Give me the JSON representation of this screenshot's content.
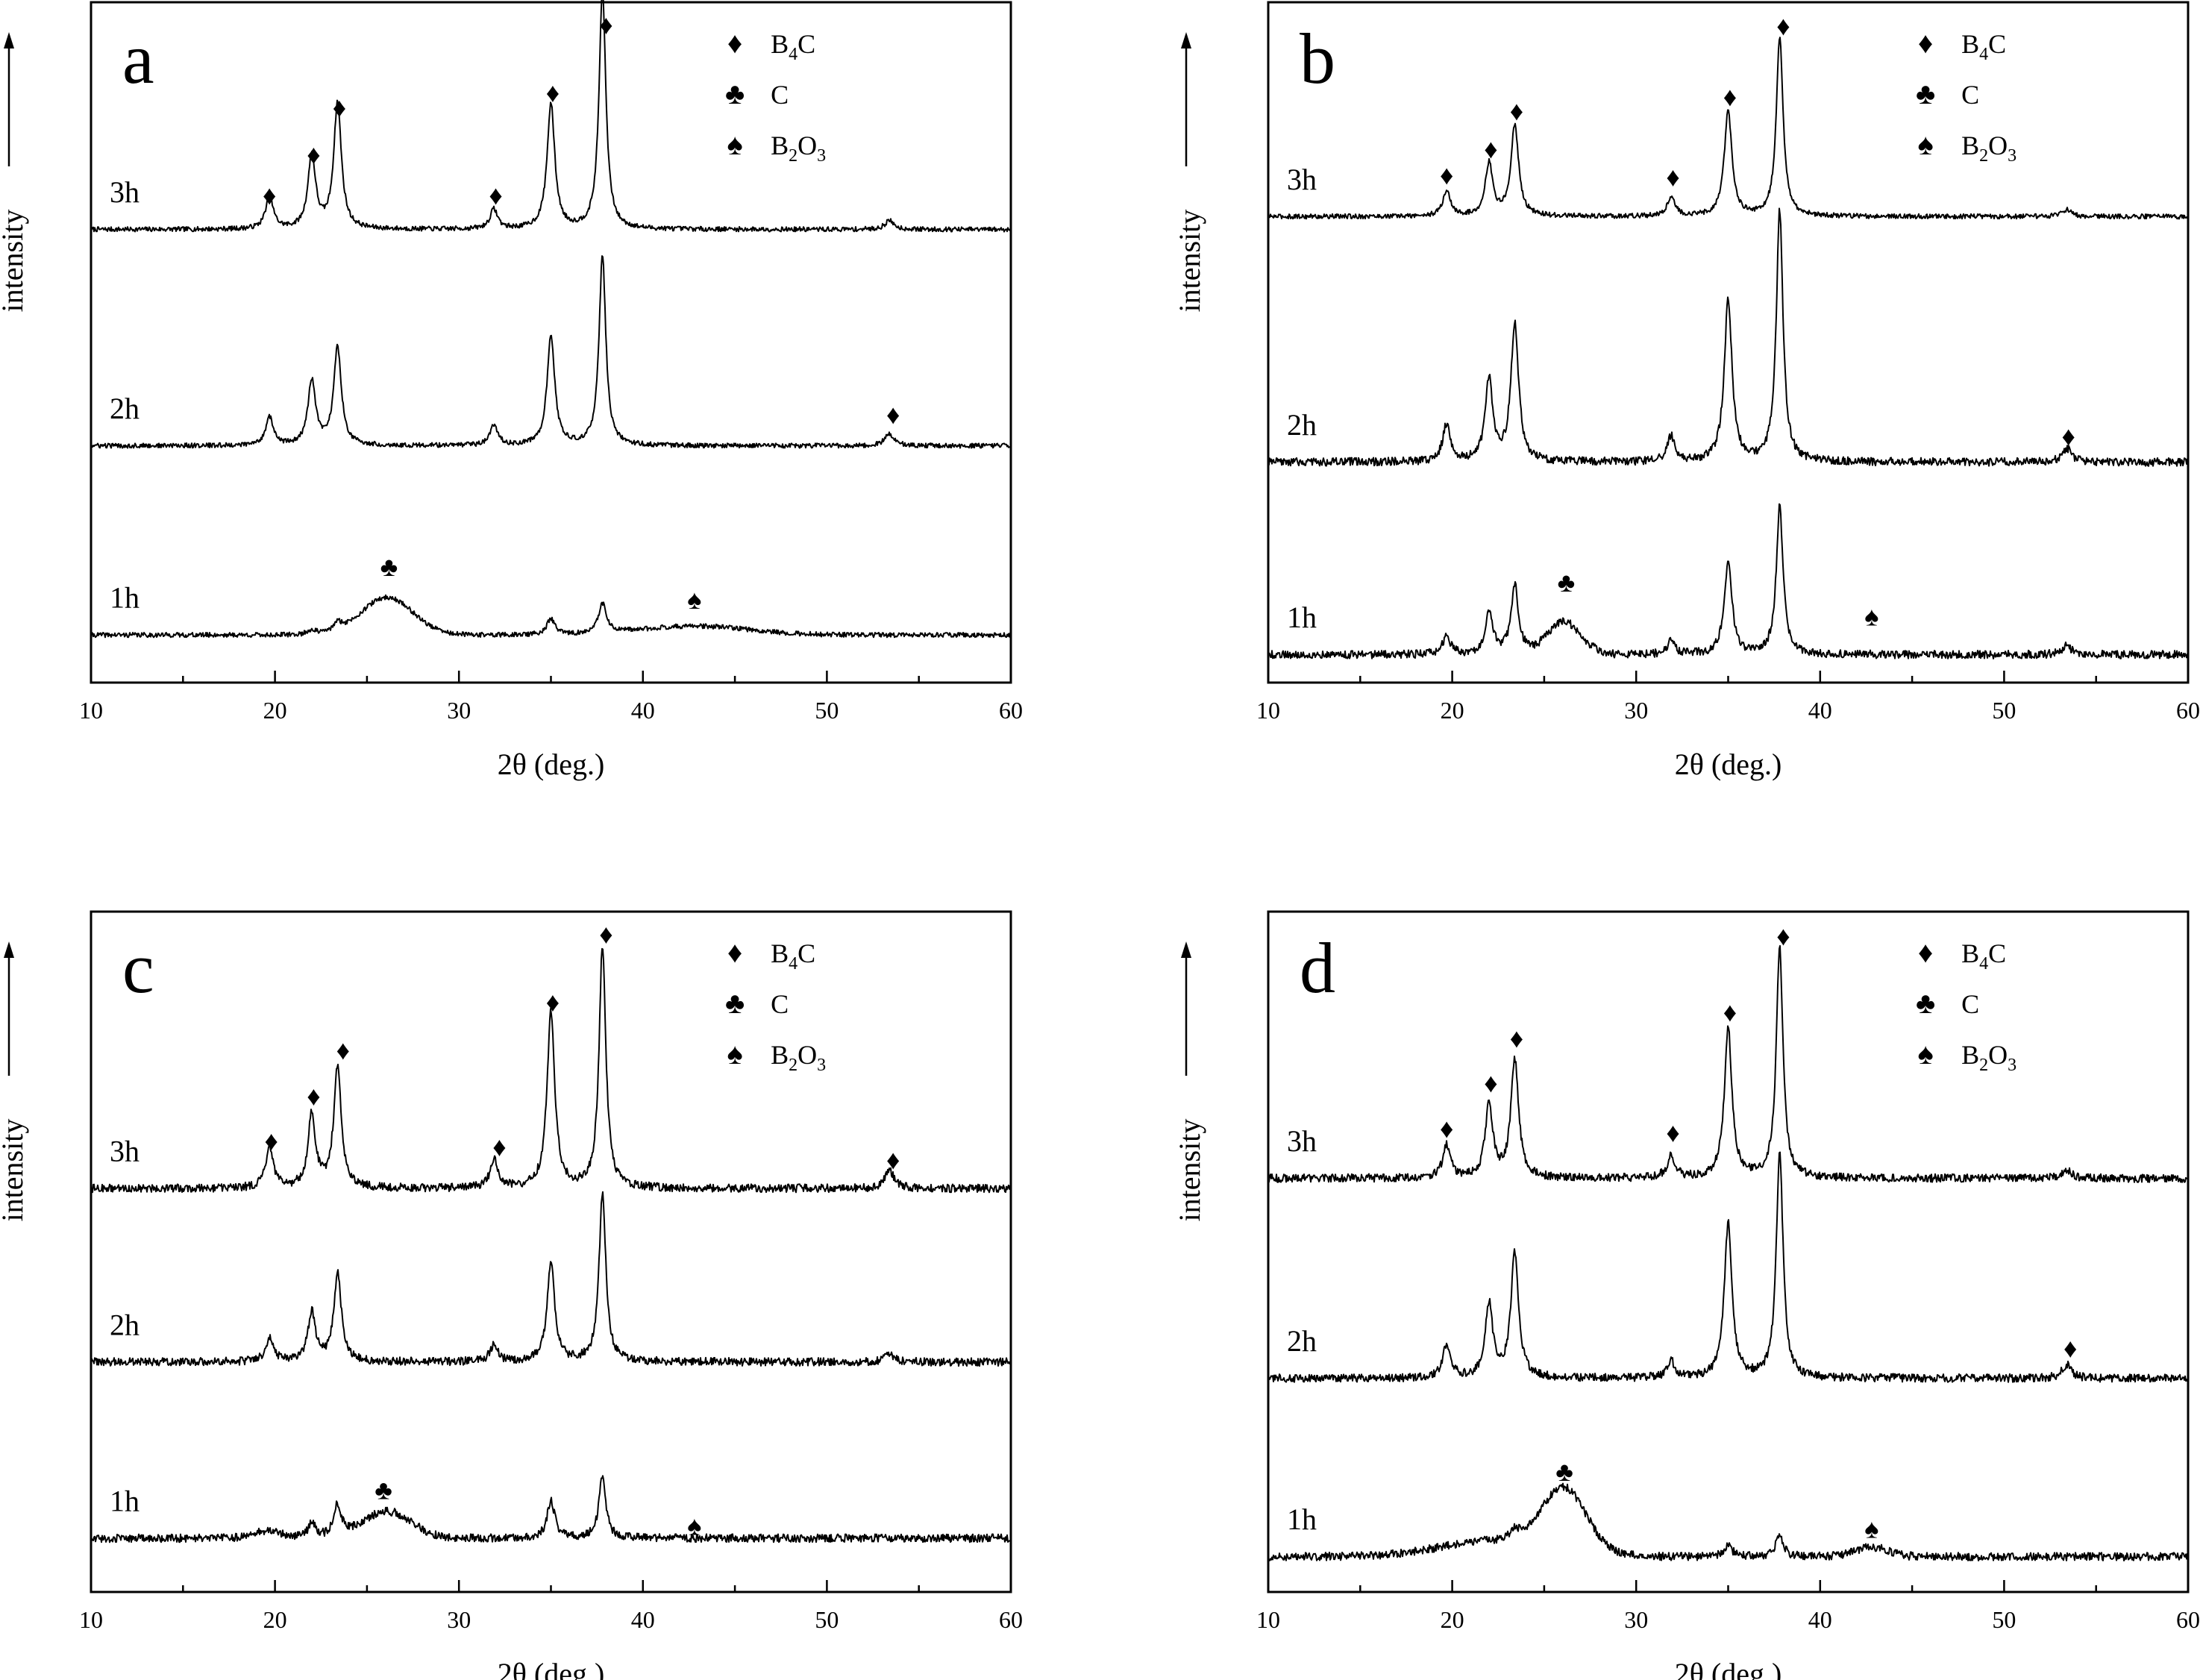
{
  "figure": {
    "panels": [
      "a",
      "b",
      "c",
      "d"
    ]
  },
  "chart_data": [
    {
      "type": "line",
      "panel_label": "a",
      "xlabel": "2θ (deg.)",
      "ylabel": "intensity",
      "xlim": [
        10,
        60
      ],
      "ylim": [
        0,
        100
      ],
      "xticks": [
        10,
        20,
        30,
        40,
        50,
        60
      ],
      "legend": {
        "placement": "top-right",
        "entries": [
          {
            "symbol": "♦",
            "main": "B",
            "sub": "4",
            "tail": "C"
          },
          {
            "symbol": "♣",
            "main": "C",
            "sub": "",
            "tail": ""
          },
          {
            "symbol": "♠",
            "main": "B",
            "sub": "2",
            "tail": "O",
            "sub2": "3"
          }
        ]
      },
      "series": [
        {
          "name": "3h",
          "label": "3h",
          "baseline": 66.6,
          "bump": [],
          "peaks": [
            [
              19.7,
              4.8,
              0.25
            ],
            [
              22.0,
              10.8,
              0.25
            ],
            [
              23.4,
              18.5,
              0.25
            ],
            [
              31.9,
              2.9,
              0.25
            ],
            [
              35.0,
              18.4,
              0.25
            ],
            [
              37.8,
              35.3,
              0.22
            ],
            [
              53.4,
              1.3,
              0.3
            ]
          ],
          "markers": [
            {
              "symbol": "♦",
              "x": 19.7,
              "y": 71.8
            },
            {
              "symbol": "♦",
              "x": 22.1,
              "y": 77.8
            },
            {
              "symbol": "♦",
              "x": 23.5,
              "y": 84.7
            },
            {
              "symbol": "♦",
              "x": 32.0,
              "y": 71.8
            },
            {
              "symbol": "♦",
              "x": 35.1,
              "y": 86.9
            },
            {
              "symbol": "♦",
              "x": 38.0,
              "y": 96.9
            }
          ]
        },
        {
          "name": "2h",
          "label": "2h",
          "baseline": 34.8,
          "bump": [],
          "peaks": [
            [
              19.7,
              4.2,
              0.25
            ],
            [
              22.0,
              9.5,
              0.25
            ],
            [
              23.4,
              14.4,
              0.25
            ],
            [
              31.9,
              3.0,
              0.25
            ],
            [
              35.0,
              16.0,
              0.25
            ],
            [
              37.8,
              27.9,
              0.22
            ],
            [
              53.4,
              1.8,
              0.3
            ]
          ],
          "markers": [
            {
              "symbol": "♦",
              "x": 53.6,
              "y": 39.6
            }
          ]
        },
        {
          "name": "1h",
          "label": "1h",
          "baseline": 7.0,
          "bump": [
            [
              26.1,
              5.5,
              1.4
            ],
            [
              42.8,
              1.3,
              3
            ]
          ],
          "peaks": [
            [
              35.0,
              2.4,
              0.25
            ],
            [
              37.8,
              4.4,
              0.25
            ],
            [
              22.0,
              0.7,
              0.3
            ],
            [
              23.4,
              1.2,
              0.3
            ]
          ],
          "markers": [
            {
              "symbol": "♣",
              "x": 26.2,
              "y": 17.2
            },
            {
              "symbol": "♠",
              "x": 42.8,
              "y": 12.4
            }
          ]
        }
      ]
    },
    {
      "type": "line",
      "panel_label": "b",
      "xlabel": "2θ (deg.)",
      "ylabel": "intensity",
      "xlim": [
        10,
        60
      ],
      "ylim": [
        0,
        100
      ],
      "xticks": [
        10,
        20,
        30,
        40,
        50,
        60
      ],
      "legend": {
        "placement": "top-right",
        "entries": [
          {
            "symbol": "♦",
            "main": "B",
            "sub": "4",
            "tail": "C"
          },
          {
            "symbol": "♣",
            "main": "C",
            "sub": "",
            "tail": ""
          },
          {
            "symbol": "♠",
            "main": "B",
            "sub": "2",
            "tail": "O",
            "sub2": "3"
          }
        ]
      },
      "series": [
        {
          "name": "3h",
          "label": "3h",
          "baseline": 68.5,
          "bump": [],
          "peaks": [
            [
              19.7,
              3.7,
              0.25
            ],
            [
              22.0,
              7.7,
              0.25
            ],
            [
              23.4,
              13.4,
              0.25
            ],
            [
              31.9,
              2.9,
              0.25
            ],
            [
              35.0,
              15.4,
              0.25
            ],
            [
              37.8,
              26.4,
              0.22
            ],
            [
              53.4,
              1.0,
              0.3
            ]
          ],
          "markers": [
            {
              "symbol": "♦",
              "x": 19.7,
              "y": 74.8
            },
            {
              "symbol": "♦",
              "x": 22.1,
              "y": 78.6
            },
            {
              "symbol": "♦",
              "x": 23.5,
              "y": 84.2
            },
            {
              "symbol": "♦",
              "x": 32.0,
              "y": 74.5
            },
            {
              "symbol": "♦",
              "x": 35.1,
              "y": 86.3
            },
            {
              "symbol": "♦",
              "x": 38.0,
              "y": 96.7
            }
          ]
        },
        {
          "name": "2h",
          "label": "2h",
          "baseline": 32.4,
          "bump": [],
          "peaks": [
            [
              19.7,
              5.6,
              0.25
            ],
            [
              22.0,
              12.0,
              0.25
            ],
            [
              23.4,
              20.3,
              0.25
            ],
            [
              31.9,
              3.7,
              0.25
            ],
            [
              35.0,
              24.0,
              0.25
            ],
            [
              37.8,
              36.9,
              0.22
            ],
            [
              53.4,
              2.1,
              0.3
            ]
          ],
          "markers": [
            {
              "symbol": "♦",
              "x": 53.5,
              "y": 36.4
            }
          ]
        },
        {
          "name": "1h",
          "label": "1h",
          "baseline": 4.1,
          "bump": [
            [
              26.1,
              4.7,
              0.9
            ]
          ],
          "peaks": [
            [
              19.7,
              2.7,
              0.25
            ],
            [
              22.0,
              6.5,
              0.25
            ],
            [
              23.4,
              10.1,
              0.25
            ],
            [
              31.9,
              2.0,
              0.25
            ],
            [
              35.0,
              13.7,
              0.25
            ],
            [
              37.8,
              21.8,
              0.22
            ],
            [
              53.4,
              1.3,
              0.3
            ]
          ],
          "markers": [
            {
              "symbol": "♣",
              "x": 26.2,
              "y": 14.9
            },
            {
              "symbol": "♠",
              "x": 42.8,
              "y": 9.9
            }
          ]
        }
      ]
    },
    {
      "type": "line",
      "panel_label": "c",
      "xlabel": "2θ (deg.)",
      "ylabel": "intensity",
      "xlim": [
        10,
        60
      ],
      "ylim": [
        0,
        100
      ],
      "xticks": [
        10,
        20,
        30,
        40,
        50,
        60
      ],
      "legend": {
        "placement": "top-right",
        "entries": [
          {
            "symbol": "♦",
            "main": "B",
            "sub": "4",
            "tail": "C"
          },
          {
            "symbol": "♣",
            "main": "C",
            "sub": "",
            "tail": ""
          },
          {
            "symbol": "♠",
            "main": "B",
            "sub": "2",
            "tail": "O",
            "sub2": "3"
          }
        ]
      },
      "series": [
        {
          "name": "3h",
          "label": "3h",
          "baseline": 59.3,
          "bump": [],
          "peaks": [
            [
              19.7,
              5.8,
              0.25
            ],
            [
              22.0,
              10.7,
              0.25
            ],
            [
              23.4,
              17.6,
              0.25
            ],
            [
              31.9,
              4.2,
              0.25
            ],
            [
              35.0,
              26.0,
              0.25
            ],
            [
              37.8,
              35.6,
              0.22
            ],
            [
              53.4,
              2.6,
              0.3
            ]
          ],
          "markers": [
            {
              "symbol": "♦",
              "x": 19.8,
              "y": 66.5
            },
            {
              "symbol": "♦",
              "x": 22.1,
              "y": 73.1
            },
            {
              "symbol": "♦",
              "x": 23.7,
              "y": 79.8
            },
            {
              "symbol": "♦",
              "x": 32.2,
              "y": 65.6
            },
            {
              "symbol": "♦",
              "x": 35.1,
              "y": 86.9
            },
            {
              "symbol": "♦",
              "x": 38.0,
              "y": 96.9
            },
            {
              "symbol": "♦",
              "x": 53.6,
              "y": 63.7
            }
          ]
        },
        {
          "name": "2h",
          "label": "2h",
          "baseline": 33.8,
          "bump": [],
          "peaks": [
            [
              19.7,
              3.5,
              0.25
            ],
            [
              22.0,
              7.2,
              0.25
            ],
            [
              23.4,
              12.9,
              0.25
            ],
            [
              31.9,
              2.5,
              0.25
            ],
            [
              35.0,
              14.5,
              0.25
            ],
            [
              37.8,
              24.7,
              0.22
            ],
            [
              53.4,
              1.1,
              0.3
            ]
          ],
          "markers": []
        },
        {
          "name": "1h",
          "label": "1h",
          "baseline": 7.9,
          "bump": [
            [
              26.1,
              3.9,
              1.3
            ],
            [
              19.6,
              1.0,
              0.8
            ]
          ],
          "peaks": [
            [
              22.0,
              2.2,
              0.25
            ],
            [
              23.4,
              4.7,
              0.25
            ],
            [
              35.0,
              5.5,
              0.25
            ],
            [
              37.8,
              9.3,
              0.22
            ]
          ],
          "markers": [
            {
              "symbol": "♣",
              "x": 25.9,
              "y": 15.2
            },
            {
              "symbol": "♠",
              "x": 42.8,
              "y": 9.9
            }
          ]
        }
      ]
    },
    {
      "type": "line",
      "panel_label": "d",
      "xlabel": "2θ (deg.)",
      "ylabel": "intensity",
      "xlim": [
        10,
        60
      ],
      "ylim": [
        0,
        100
      ],
      "xticks": [
        10,
        20,
        30,
        40,
        50,
        60
      ],
      "legend": {
        "placement": "top-right",
        "entries": [
          {
            "symbol": "♦",
            "main": "B",
            "sub": "4",
            "tail": "C"
          },
          {
            "symbol": "♣",
            "main": "C",
            "sub": "",
            "tail": ""
          },
          {
            "symbol": "♠",
            "main": "B",
            "sub": "2",
            "tail": "O",
            "sub2": "3"
          }
        ]
      },
      "series": [
        {
          "name": "3h",
          "label": "3h",
          "baseline": 60.8,
          "bump": [],
          "peaks": [
            [
              19.7,
              4.8,
              0.25
            ],
            [
              22.0,
              10.6,
              0.25
            ],
            [
              23.4,
              17.4,
              0.25
            ],
            [
              31.9,
              3.3,
              0.25
            ],
            [
              35.0,
              21.9,
              0.25
            ],
            [
              37.8,
              33.8,
              0.22
            ],
            [
              53.4,
              1.3,
              0.3
            ]
          ],
          "markers": [
            {
              "symbol": "♦",
              "x": 19.7,
              "y": 68.3
            },
            {
              "symbol": "♦",
              "x": 22.1,
              "y": 75.0
            },
            {
              "symbol": "♦",
              "x": 23.5,
              "y": 81.6
            },
            {
              "symbol": "♦",
              "x": 32.0,
              "y": 67.7
            },
            {
              "symbol": "♦",
              "x": 35.1,
              "y": 85.4
            },
            {
              "symbol": "♦",
              "x": 38.0,
              "y": 96.6
            }
          ]
        },
        {
          "name": "2h",
          "label": "2h",
          "baseline": 31.4,
          "bump": [],
          "peaks": [
            [
              19.7,
              5.0,
              0.25
            ],
            [
              22.0,
              10.8,
              0.25
            ],
            [
              23.4,
              18.4,
              0.25
            ],
            [
              31.9,
              2.5,
              0.25
            ],
            [
              35.0,
              22.7,
              0.25
            ],
            [
              37.8,
              33.3,
              0.22
            ],
            [
              53.4,
              2.0,
              0.3
            ]
          ],
          "markers": [
            {
              "symbol": "♦",
              "x": 53.6,
              "y": 36.0
            }
          ]
        },
        {
          "name": "1h",
          "label": "1h",
          "baseline": 5.2,
          "bump": [
            [
              26.1,
              9.0,
              1.2
            ],
            [
              22.5,
              2.4,
              3.0
            ],
            [
              42.8,
              1.4,
              0.9
            ]
          ],
          "peaks": [
            [
              35.0,
              1.7,
              0.25
            ],
            [
              37.8,
              3.5,
              0.22
            ],
            [
              23.4,
              1.4,
              0.3
            ]
          ],
          "markers": [
            {
              "symbol": "♣",
              "x": 26.1,
              "y": 17.9
            },
            {
              "symbol": "♠",
              "x": 42.8,
              "y": 9.5
            }
          ]
        }
      ]
    }
  ]
}
